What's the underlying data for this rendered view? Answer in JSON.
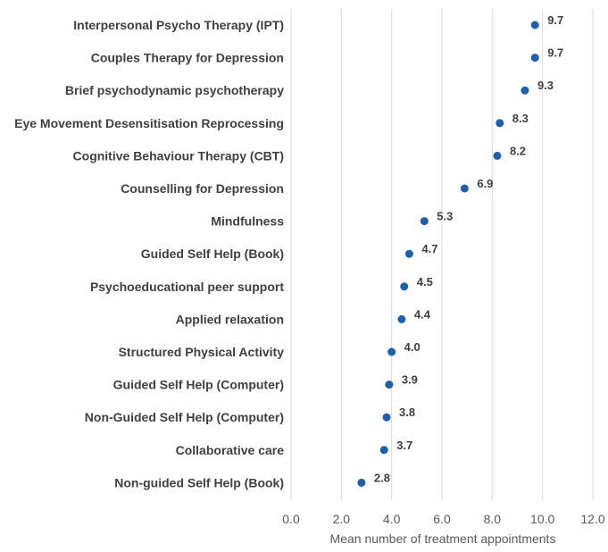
{
  "chart_data": {
    "type": "scatter",
    "orientation": "horizontal",
    "categories": [
      "Interpersonal Psycho Therapy (IPT)",
      "Couples Therapy for Depression",
      "Brief psychodynamic psychotherapy",
      "Eye Movement Desensitisation Reprocessing",
      "Cognitive Behaviour Therapy (CBT)",
      "Counselling for Depression",
      "Mindfulness",
      "Guided Self Help (Book)",
      "Psychoeducational peer support",
      "Applied relaxation",
      "Structured Physical Activity",
      "Guided Self Help (Computer)",
      "Non-Guided Self Help (Computer)",
      "Collaborative care",
      "Non-guided Self Help (Book)"
    ],
    "values": [
      9.7,
      9.7,
      9.3,
      8.3,
      8.2,
      6.9,
      5.3,
      4.7,
      4.5,
      4.4,
      4.0,
      3.9,
      3.8,
      3.7,
      2.8
    ],
    "value_labels": [
      "9.7",
      "9.7",
      "9.3",
      "8.3",
      "8.2",
      "6.9",
      "5.3",
      "4.7",
      "4.5",
      "4.4",
      "4.0",
      "3.9",
      "3.8",
      "3.7",
      "2.8"
    ],
    "xlabel": "Mean number of treatment appointments",
    "xlim": [
      0,
      12
    ],
    "xticks": [
      "0.0",
      "2.0",
      "4.0",
      "6.0",
      "8.0",
      "10.0",
      "12.0"
    ],
    "grid": "vertical",
    "marker_color": "#1f5fad"
  }
}
